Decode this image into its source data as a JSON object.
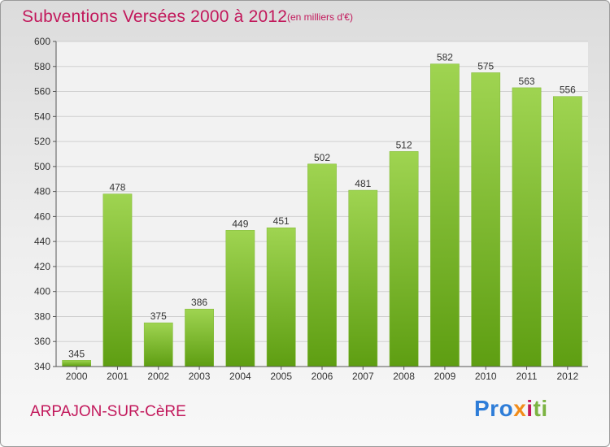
{
  "header": {
    "title": "Subventions Versées 2000 à 2012",
    "subtitle": "(en milliers d'€)"
  },
  "footer": {
    "city": "ARPAJON-SUR-CèRE",
    "logo": [
      "Pro",
      "x",
      "i",
      "ti"
    ]
  },
  "colors": {
    "title": "#c2185b",
    "bar_top": "#9fd451",
    "bar_bottom": "#5e9e12"
  },
  "chart_data": {
    "type": "bar",
    "title": "Subventions Versées 2000 à 2012",
    "xlabel": "",
    "ylabel": "",
    "categories": [
      "2000",
      "2001",
      "2002",
      "2003",
      "2004",
      "2005",
      "2006",
      "2007",
      "2008",
      "2009",
      "2010",
      "2011",
      "2012"
    ],
    "values": [
      345,
      478,
      375,
      386,
      449,
      451,
      502,
      481,
      512,
      582,
      575,
      563,
      556
    ],
    "ylim": [
      340,
      600
    ],
    "yticks": [
      340,
      360,
      380,
      400,
      420,
      440,
      460,
      480,
      500,
      520,
      540,
      560,
      580,
      600
    ],
    "grid": true,
    "legend": "none"
  }
}
